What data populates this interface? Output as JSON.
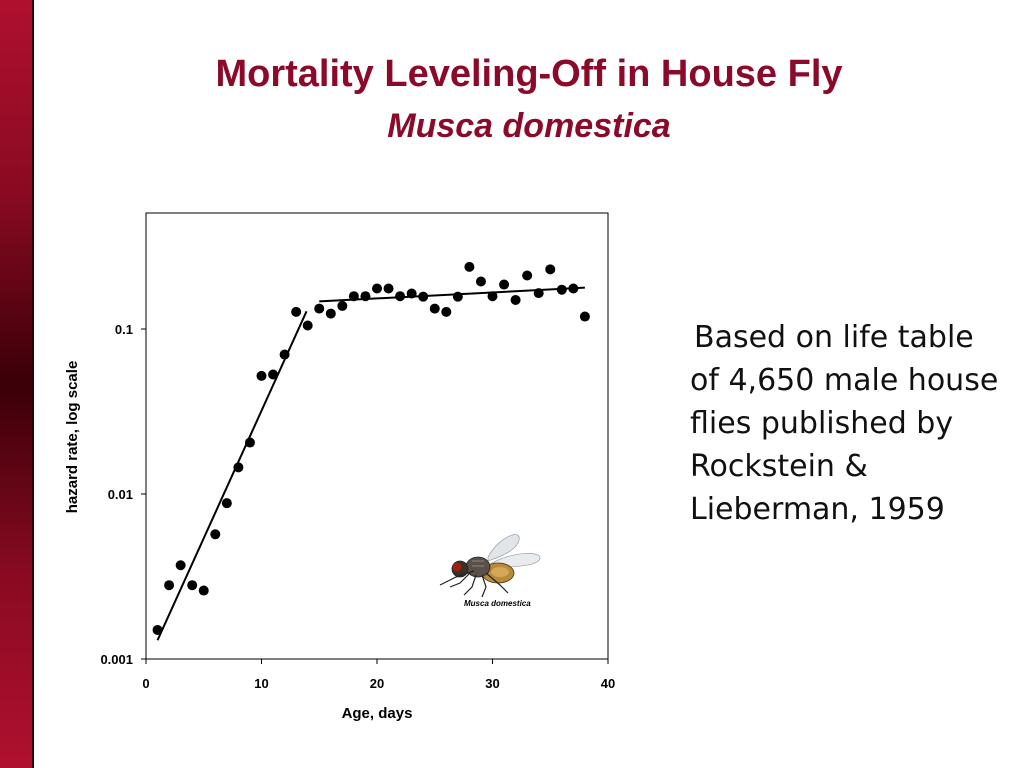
{
  "slide": {
    "title": "Mortality Leveling-Off in House Fly",
    "subtitle": "Musca domestica",
    "caption": "Based on life table of 4,650 male house flies published by Rockstein & Lieberman, 1959",
    "accent_color": "#8b0a2a"
  },
  "image": {
    "fly_label": "Musca domestica"
  },
  "chart_data": {
    "type": "scatter",
    "xlabel": "Age, days",
    "ylabel": "hazard rate, log scale",
    "xlim": [
      0,
      40
    ],
    "ylim": [
      0.001,
      0.6
    ],
    "yscale": "log",
    "xticks": [
      0,
      10,
      20,
      30,
      40
    ],
    "yticks": [
      {
        "value": 0.001,
        "label": "0.001"
      },
      {
        "value": 0.01,
        "label": "0.01"
      },
      {
        "value": 0.1,
        "label": "0.1"
      }
    ],
    "grid": false,
    "points": [
      {
        "x": 1,
        "y": 0.0015
      },
      {
        "x": 2,
        "y": 0.0028
      },
      {
        "x": 3,
        "y": 0.0037
      },
      {
        "x": 4,
        "y": 0.0028
      },
      {
        "x": 5,
        "y": 0.0026
      },
      {
        "x": 6,
        "y": 0.0057
      },
      {
        "x": 7,
        "y": 0.0088
      },
      {
        "x": 8,
        "y": 0.0145
      },
      {
        "x": 9,
        "y": 0.0205
      },
      {
        "x": 10,
        "y": 0.052
      },
      {
        "x": 11,
        "y": 0.053
      },
      {
        "x": 12,
        "y": 0.07
      },
      {
        "x": 13,
        "y": 0.127
      },
      {
        "x": 14,
        "y": 0.105
      },
      {
        "x": 15,
        "y": 0.133
      },
      {
        "x": 16,
        "y": 0.124
      },
      {
        "x": 17,
        "y": 0.138
      },
      {
        "x": 18,
        "y": 0.158
      },
      {
        "x": 19,
        "y": 0.158
      },
      {
        "x": 20,
        "y": 0.176
      },
      {
        "x": 21,
        "y": 0.176
      },
      {
        "x": 22,
        "y": 0.158
      },
      {
        "x": 23,
        "y": 0.164
      },
      {
        "x": 24,
        "y": 0.157
      },
      {
        "x": 25,
        "y": 0.133
      },
      {
        "x": 26,
        "y": 0.127
      },
      {
        "x": 27,
        "y": 0.157
      },
      {
        "x": 28,
        "y": 0.238
      },
      {
        "x": 29,
        "y": 0.194
      },
      {
        "x": 30,
        "y": 0.158
      },
      {
        "x": 31,
        "y": 0.186
      },
      {
        "x": 32,
        "y": 0.15
      },
      {
        "x": 33,
        "y": 0.211
      },
      {
        "x": 34,
        "y": 0.165
      },
      {
        "x": 35,
        "y": 0.23
      },
      {
        "x": 36,
        "y": 0.173
      },
      {
        "x": 37,
        "y": 0.176
      },
      {
        "x": 38,
        "y": 0.119
      }
    ],
    "fit_lines": [
      {
        "x": [
          1,
          13.9
        ],
        "y": [
          0.0013,
          0.128
        ]
      },
      {
        "x": [
          15,
          38
        ],
        "y": [
          0.147,
          0.178
        ]
      }
    ]
  }
}
